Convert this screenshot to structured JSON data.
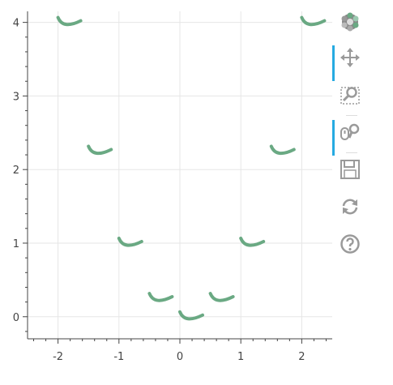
{
  "chart_data": {
    "type": "scatter",
    "marker": "curved-arc-glyph",
    "marker_color": "#6aa983",
    "x": [
      -2,
      -1.5,
      -1,
      -0.5,
      0,
      0.5,
      1,
      1.5,
      2
    ],
    "y": [
      4,
      2.25,
      1,
      0.25,
      0,
      0.25,
      1,
      2.25,
      4
    ],
    "xlim": [
      -2.5,
      2.5
    ],
    "ylim": [
      -0.3,
      4.15
    ],
    "xticks": [
      "-2",
      "-1",
      "0",
      "1",
      "2"
    ],
    "yticks": [
      "0",
      "1",
      "2",
      "3",
      "4"
    ],
    "grid": true,
    "title": "",
    "xlabel": "",
    "ylabel": ""
  },
  "toolbar": {
    "items": [
      {
        "name": "bokeh-logo-icon",
        "active": false
      },
      {
        "name": "pan-tool-icon",
        "active": true
      },
      {
        "name": "box-zoom-tool-icon",
        "active": false
      },
      {
        "name": "wheel-zoom-tool-icon",
        "active": true
      },
      {
        "name": "save-tool-icon",
        "active": false
      },
      {
        "name": "reset-tool-icon",
        "active": false
      },
      {
        "name": "help-tool-icon",
        "active": false
      }
    ]
  },
  "colors": {
    "marker": "#6aa983",
    "grid": "#e6e6e6",
    "axis": "#444444",
    "tool_icon": "#9a9a9a",
    "active_indicator": "#26aae1"
  }
}
